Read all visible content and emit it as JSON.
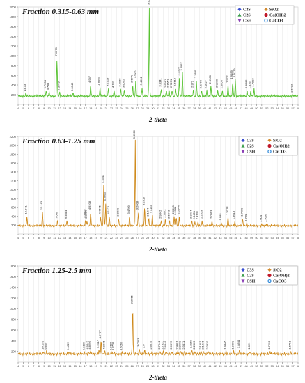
{
  "chart_data": [
    {
      "type": "line",
      "title": "Fraction 0.315-0.63 mm",
      "xlabel": "2-theta",
      "xlim": [
        4,
        58
      ],
      "ylim": [
        0,
        2000
      ],
      "yticks": [
        200,
        400,
        600,
        800,
        1000,
        1200,
        1400,
        1600,
        1800,
        2000
      ],
      "xticks": [
        4,
        5,
        6,
        7,
        8,
        9,
        10,
        11,
        12,
        13,
        14,
        15,
        16,
        17,
        18,
        19,
        20,
        21,
        22,
        23,
        24,
        25,
        26,
        27,
        28,
        29,
        30,
        31,
        32,
        33,
        34,
        35,
        36,
        37,
        38,
        39,
        40,
        41,
        42,
        43,
        44,
        45,
        46,
        47,
        48,
        49,
        50,
        51,
        52,
        53,
        54,
        55,
        56,
        57,
        58
      ],
      "grid": true,
      "line_color": "#58c232",
      "legend": [
        {
          "symbol": "diamond",
          "color": "#3a4fd0",
          "label": "C3S"
        },
        {
          "symbol": "triangle",
          "color": "#3a9e4a",
          "label": "C2S"
        },
        {
          "symbol": "triangle-down",
          "color": "#8a3fb5",
          "label": "CSH"
        },
        {
          "symbol": "diamond",
          "color": "#d28a2e",
          "label": "SiO2"
        },
        {
          "symbol": "circle",
          "color": "#c0182a",
          "label": "Ca(OH)2"
        },
        {
          "symbol": "ring",
          "color": "#2b86d8",
          "label": "CaCO3"
        }
      ],
      "peaks": [
        {
          "x": 5.5,
          "y": 230,
          "label": "14.73"
        },
        {
          "x": 9.4,
          "y": 280,
          "label": "9.7604"
        },
        {
          "x": 10.0,
          "y": 260,
          "label": "8.588"
        },
        {
          "x": 11.5,
          "y": 950,
          "label": "7.6678"
        },
        {
          "x": 12.0,
          "y": 250,
          "label": "7.3749"
        },
        {
          "x": 14.6,
          "y": 230,
          "label": "6.0045"
        },
        {
          "x": 18.0,
          "y": 400,
          "label": "4.947"
        },
        {
          "x": 19.8,
          "y": 350,
          "label": "4.6199"
        },
        {
          "x": 21.4,
          "y": 330,
          "label": "4.2918"
        },
        {
          "x": 22.5,
          "y": 300,
          "label": "4.132"
        },
        {
          "x": 23.8,
          "y": 320,
          "label": "3.8969"
        },
        {
          "x": 24.5,
          "y": 300,
          "label": "3.8065"
        },
        {
          "x": 26.1,
          "y": 400,
          "label": "3.6772"
        },
        {
          "x": 26.7,
          "y": 500,
          "label": "3.6221"
        },
        {
          "x": 27.9,
          "y": 350,
          "label": "3.4801"
        },
        {
          "x": 29.3,
          "y": 2000,
          "label": "3.3521"
        },
        {
          "x": 31.6,
          "y": 320,
          "label": "3.0341"
        },
        {
          "x": 32.6,
          "y": 300,
          "label": "2.8981"
        },
        {
          "x": 33.1,
          "y": 300,
          "label": "2.7651"
        },
        {
          "x": 33.7,
          "y": 300,
          "label": "2.7251"
        },
        {
          "x": 34.4,
          "y": 330,
          "label": "2.6113"
        },
        {
          "x": 35.1,
          "y": 550,
          "label": "2.5555"
        },
        {
          "x": 35.7,
          "y": 650,
          "label": "2.4967"
        },
        {
          "x": 37.8,
          "y": 300,
          "label": "2.372"
        },
        {
          "x": 38.4,
          "y": 500,
          "label": "2.2885"
        },
        {
          "x": 39.4,
          "y": 280,
          "label": "2.2378"
        },
        {
          "x": 40.4,
          "y": 280,
          "label": "2.1627"
        },
        {
          "x": 41.2,
          "y": 380,
          "label": "2.0988"
        },
        {
          "x": 42.5,
          "y": 300,
          "label": "2.0079"
        },
        {
          "x": 43.4,
          "y": 280,
          "label": "2.0056"
        },
        {
          "x": 44.5,
          "y": 400,
          "label": "1.9267"
        },
        {
          "x": 45.4,
          "y": 480,
          "label": "1.9189"
        },
        {
          "x": 45.9,
          "y": 520,
          "label": "1.9179"
        },
        {
          "x": 48.2,
          "y": 290,
          "label": "1.8485"
        },
        {
          "x": 48.9,
          "y": 280,
          "label": "1.816"
        },
        {
          "x": 49.5,
          "y": 320,
          "label": "1.7803"
        },
        {
          "x": 57.0,
          "y": 200,
          "label": "1.6723"
        }
      ]
    },
    {
      "type": "line",
      "title": "Fraction 0.63-1.25 mm",
      "xlabel": "2-theta",
      "xlim": [
        4,
        58
      ],
      "ylim": [
        0,
        2200
      ],
      "yticks": [
        200,
        400,
        600,
        800,
        1000,
        1200,
        1400,
        1600,
        1800,
        2000,
        2200
      ],
      "xticks": [
        4,
        5,
        6,
        7,
        8,
        9,
        10,
        11,
        12,
        13,
        14,
        15,
        16,
        17,
        18,
        19,
        20,
        21,
        22,
        23,
        24,
        25,
        26,
        27,
        28,
        29,
        30,
        31,
        32,
        33,
        34,
        35,
        36,
        37,
        38,
        39,
        40,
        41,
        42,
        43,
        44,
        45,
        46,
        47,
        48,
        49,
        50,
        51,
        52,
        53,
        54,
        55,
        56,
        57,
        58
      ],
      "grid": true,
      "line_color": "#cf8a1c",
      "legend": [
        {
          "symbol": "diamond",
          "color": "#3a4fd0",
          "label": "C3S"
        },
        {
          "symbol": "triangle",
          "color": "#3a9e4a",
          "label": "C2S"
        },
        {
          "symbol": "triangle-down",
          "color": "#8a3fb5",
          "label": "CSH"
        },
        {
          "symbol": "diamond",
          "color": "#d28a2e",
          "label": "SiO2"
        },
        {
          "symbol": "circle",
          "color": "#c0182a",
          "label": "Ca(OH)2"
        },
        {
          "symbol": "ring",
          "color": "#2b86d8",
          "label": "CaCO3"
        }
      ],
      "peaks": [
        {
          "x": 5.7,
          "y": 400,
          "label": "14.371"
        },
        {
          "x": 8.7,
          "y": 500,
          "label": "10.163"
        },
        {
          "x": 11.6,
          "y": 300,
          "label": "7.600"
        },
        {
          "x": 13.4,
          "y": 300,
          "label": "6.4084"
        },
        {
          "x": 17.0,
          "y": 320,
          "label": "5.6802"
        },
        {
          "x": 17.3,
          "y": 300,
          "label": "5.3167"
        },
        {
          "x": 18.0,
          "y": 500,
          "label": "4.9208"
        },
        {
          "x": 19.9,
          "y": 400,
          "label": "4.4475"
        },
        {
          "x": 20.5,
          "y": 1100,
          "label": "4.3343"
        },
        {
          "x": 20.9,
          "y": 700,
          "label": "4.2663"
        },
        {
          "x": 21.6,
          "y": 400,
          "label": "4.1121"
        },
        {
          "x": 23.4,
          "y": 350,
          "label": "3.8379"
        },
        {
          "x": 25.5,
          "y": 400,
          "label": "3.4709"
        },
        {
          "x": 26.6,
          "y": 2100,
          "label": "3.3526"
        },
        {
          "x": 27.2,
          "y": 500,
          "label": "3.2608"
        },
        {
          "x": 28.4,
          "y": 600,
          "label": "3.2017"
        },
        {
          "x": 29.2,
          "y": 350,
          "label": "3.1377"
        },
        {
          "x": 29.9,
          "y": 420,
          "label": "3.0465"
        },
        {
          "x": 31.6,
          "y": 300,
          "label": "2.9842"
        },
        {
          "x": 32.4,
          "y": 320,
          "label": "2.7672"
        },
        {
          "x": 33.2,
          "y": 300,
          "label": "2.6843"
        },
        {
          "x": 34.1,
          "y": 400,
          "label": "2.6333"
        },
        {
          "x": 34.5,
          "y": 380,
          "label": "2.5781"
        },
        {
          "x": 35.1,
          "y": 400,
          "label": "2.5044"
        },
        {
          "x": 37.5,
          "y": 300,
          "label": "2.3874"
        },
        {
          "x": 38.1,
          "y": 280,
          "label": "2.3451"
        },
        {
          "x": 38.7,
          "y": 280,
          "label": "2.3131"
        },
        {
          "x": 39.5,
          "y": 300,
          "label": "2.2859"
        },
        {
          "x": 41.4,
          "y": 300,
          "label": "2.0963"
        },
        {
          "x": 43.2,
          "y": 260,
          "label": "1.985"
        },
        {
          "x": 44.5,
          "y": 380,
          "label": "1.9318"
        },
        {
          "x": 45.8,
          "y": 280,
          "label": "1.8613"
        },
        {
          "x": 47.3,
          "y": 350,
          "label": "1.7909"
        },
        {
          "x": 48.1,
          "y": 240,
          "label": "1.769"
        },
        {
          "x": 51.0,
          "y": 220,
          "label": "1.604"
        },
        {
          "x": 51.9,
          "y": 220,
          "label": "1.5699"
        }
      ]
    },
    {
      "type": "line",
      "title": "Fraction 1.25-2.5 mm",
      "xlabel": "2-theta",
      "xlim": [
        4,
        58
      ],
      "ylim": [
        0,
        1800
      ],
      "yticks": [
        200,
        400,
        600,
        800,
        1000,
        1200,
        1400,
        1600,
        1800
      ],
      "xticks": [
        4,
        5,
        6,
        7,
        8,
        9,
        10,
        11,
        12,
        13,
        14,
        15,
        16,
        17,
        18,
        19,
        20,
        21,
        22,
        23,
        24,
        25,
        26,
        27,
        28,
        29,
        30,
        31,
        32,
        33,
        34,
        35,
        36,
        37,
        38,
        39,
        40,
        41,
        42,
        43,
        44,
        45,
        46,
        47,
        48,
        49,
        50,
        51,
        52,
        53,
        54,
        55,
        56,
        57,
        58
      ],
      "grid": true,
      "line_color": "#cf8a1c",
      "legend": [
        {
          "symbol": "diamond",
          "color": "#3a4fd0",
          "label": "C3S"
        },
        {
          "symbol": "triangle",
          "color": "#3a9e4a",
          "label": "C2S"
        },
        {
          "symbol": "triangle-down",
          "color": "#8a3fb5",
          "label": "CSH"
        },
        {
          "symbol": "diamond",
          "color": "#d28a2e",
          "label": "SiO2"
        },
        {
          "symbol": "circle",
          "color": "#c0182a",
          "label": "Ca(OH)2"
        },
        {
          "symbol": "ring",
          "color": "#2b86d8",
          "label": "CaCO3"
        }
      ],
      "peaks": [
        {
          "x": 8.9,
          "y": 200,
          "label": "10.199"
        },
        {
          "x": 9.5,
          "y": 200,
          "label": "9.659"
        },
        {
          "x": 13.8,
          "y": 180,
          "label": "6.4822"
        },
        {
          "x": 16.8,
          "y": 180,
          "label": "5.2109"
        },
        {
          "x": 17.6,
          "y": 200,
          "label": "4.9442"
        },
        {
          "x": 18.0,
          "y": 200,
          "label": "4.8296"
        },
        {
          "x": 19.6,
          "y": 220,
          "label": "4.4917"
        },
        {
          "x": 20.0,
          "y": 400,
          "label": "4.2777"
        },
        {
          "x": 20.7,
          "y": 200,
          "label": "4.0675"
        },
        {
          "x": 22.1,
          "y": 180,
          "label": "3.8684"
        },
        {
          "x": 22.5,
          "y": 180,
          "label": "3.6508"
        },
        {
          "x": 24.1,
          "y": 180,
          "label": "3.5065"
        },
        {
          "x": 26.1,
          "y": 1050,
          "label": "3.3665"
        },
        {
          "x": 27.4,
          "y": 250,
          "label": "3.0313"
        },
        {
          "x": 28.4,
          "y": 220,
          "label": "3.0"
        },
        {
          "x": 29.8,
          "y": 200,
          "label": "2.9675"
        },
        {
          "x": 31.4,
          "y": 200,
          "label": "2.7641"
        },
        {
          "x": 32.0,
          "y": 200,
          "label": "2.7325"
        },
        {
          "x": 32.6,
          "y": 200,
          "label": "2.6348"
        },
        {
          "x": 33.7,
          "y": 200,
          "label": "2.6375"
        },
        {
          "x": 34.8,
          "y": 200,
          "label": "2.4961"
        },
        {
          "x": 35.4,
          "y": 200,
          "label": "2.3968"
        },
        {
          "x": 36.1,
          "y": 200,
          "label": "2.3411"
        },
        {
          "x": 37.5,
          "y": 220,
          "label": "2.2869"
        },
        {
          "x": 38.1,
          "y": 200,
          "label": "2.2329"
        },
        {
          "x": 39.3,
          "y": 200,
          "label": "2.1997"
        },
        {
          "x": 39.8,
          "y": 200,
          "label": "2.1316"
        },
        {
          "x": 40.7,
          "y": 200,
          "label": "2.0839"
        },
        {
          "x": 44.1,
          "y": 200,
          "label": "1.9846"
        },
        {
          "x": 45.6,
          "y": 200,
          "label": "1.9299"
        },
        {
          "x": 46.7,
          "y": 220,
          "label": "1.8844"
        },
        {
          "x": 48.7,
          "y": 200,
          "label": "1.821"
        },
        {
          "x": 52.6,
          "y": 200,
          "label": "1.7252"
        },
        {
          "x": 56.6,
          "y": 200,
          "label": "1.6751"
        }
      ]
    }
  ]
}
